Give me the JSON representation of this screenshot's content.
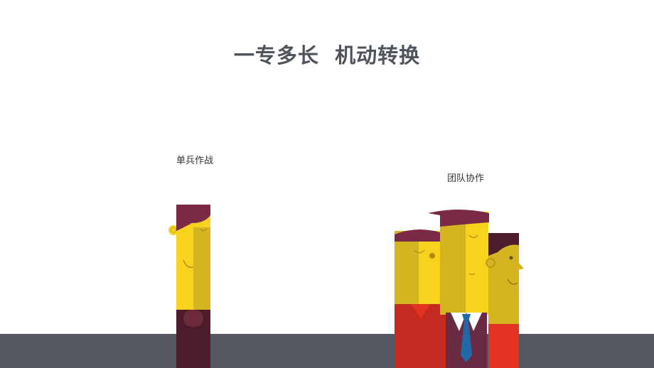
{
  "slide": {
    "title": "一专多长  机动转换",
    "label_solo": "单兵作战",
    "label_team": "团队协作"
  },
  "colors": {
    "title": "#4f535b",
    "floor": "#545862",
    "skin_yellow": "#f8d31d",
    "skin_shade": "#d4b521",
    "hair": "#7b2a46",
    "red_shirt": "#c42a1f",
    "bright_red": "#e23221",
    "tie_blue": "#1f6aa6"
  },
  "icons": [
    "person-solo-icon",
    "person-team-left-icon",
    "person-team-middle-icon",
    "person-team-right-icon"
  ]
}
